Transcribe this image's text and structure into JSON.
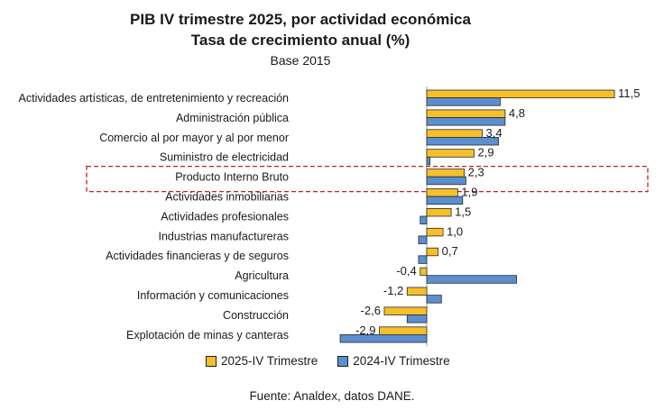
{
  "chart_data": {
    "type": "bar",
    "orientation": "horizontal",
    "title": "PIB IV trimestre 2025, por actividad económica",
    "subtitle": "Tasa de crecimiento anual (%)",
    "base": "Base 2015",
    "categories": [
      "Actividades artísticas, de entretenimiento y recreación",
      "Administración pública",
      "Comercio al por mayor y al por menor",
      "Suministro de electricidad",
      "Producto Interno Bruto",
      "Actividades inmobiliarias",
      "Actividades profesionales",
      "Industrias manufactureras",
      "Actividades financieras y de seguros",
      "Agricultura",
      "Información y comunicaciones",
      "Construcción",
      "Explotación de minas y canteras"
    ],
    "series": [
      {
        "name": "2025-IV Trimestre",
        "color": "#f5c02a",
        "values": [
          11.5,
          4.8,
          3.4,
          2.9,
          2.3,
          1.9,
          1.5,
          1.0,
          0.7,
          -0.4,
          -1.2,
          -2.6,
          -2.9
        ],
        "labels": [
          "11,5",
          "4,8",
          "3,4",
          "2,9",
          "2,3",
          "1,9",
          "1,5",
          "1,0",
          "0,7",
          "-0,4",
          "-1,2",
          "-2,6",
          "-2,9"
        ]
      },
      {
        "name": "2024-IV Trimestre",
        "color": "#5b8fcf",
        "values": [
          4.5,
          4.8,
          4.4,
          0.2,
          2.4,
          2.2,
          -0.4,
          -0.5,
          -0.5,
          5.5,
          0.9,
          -1.2,
          -5.3
        ]
      }
    ],
    "highlighted_category": "Producto Interno Bruto",
    "xlim": [
      -5.5,
      11.5
    ],
    "grid": false,
    "legend_position": "bottom"
  },
  "source": "Fuente: Analdex, datos DANE."
}
